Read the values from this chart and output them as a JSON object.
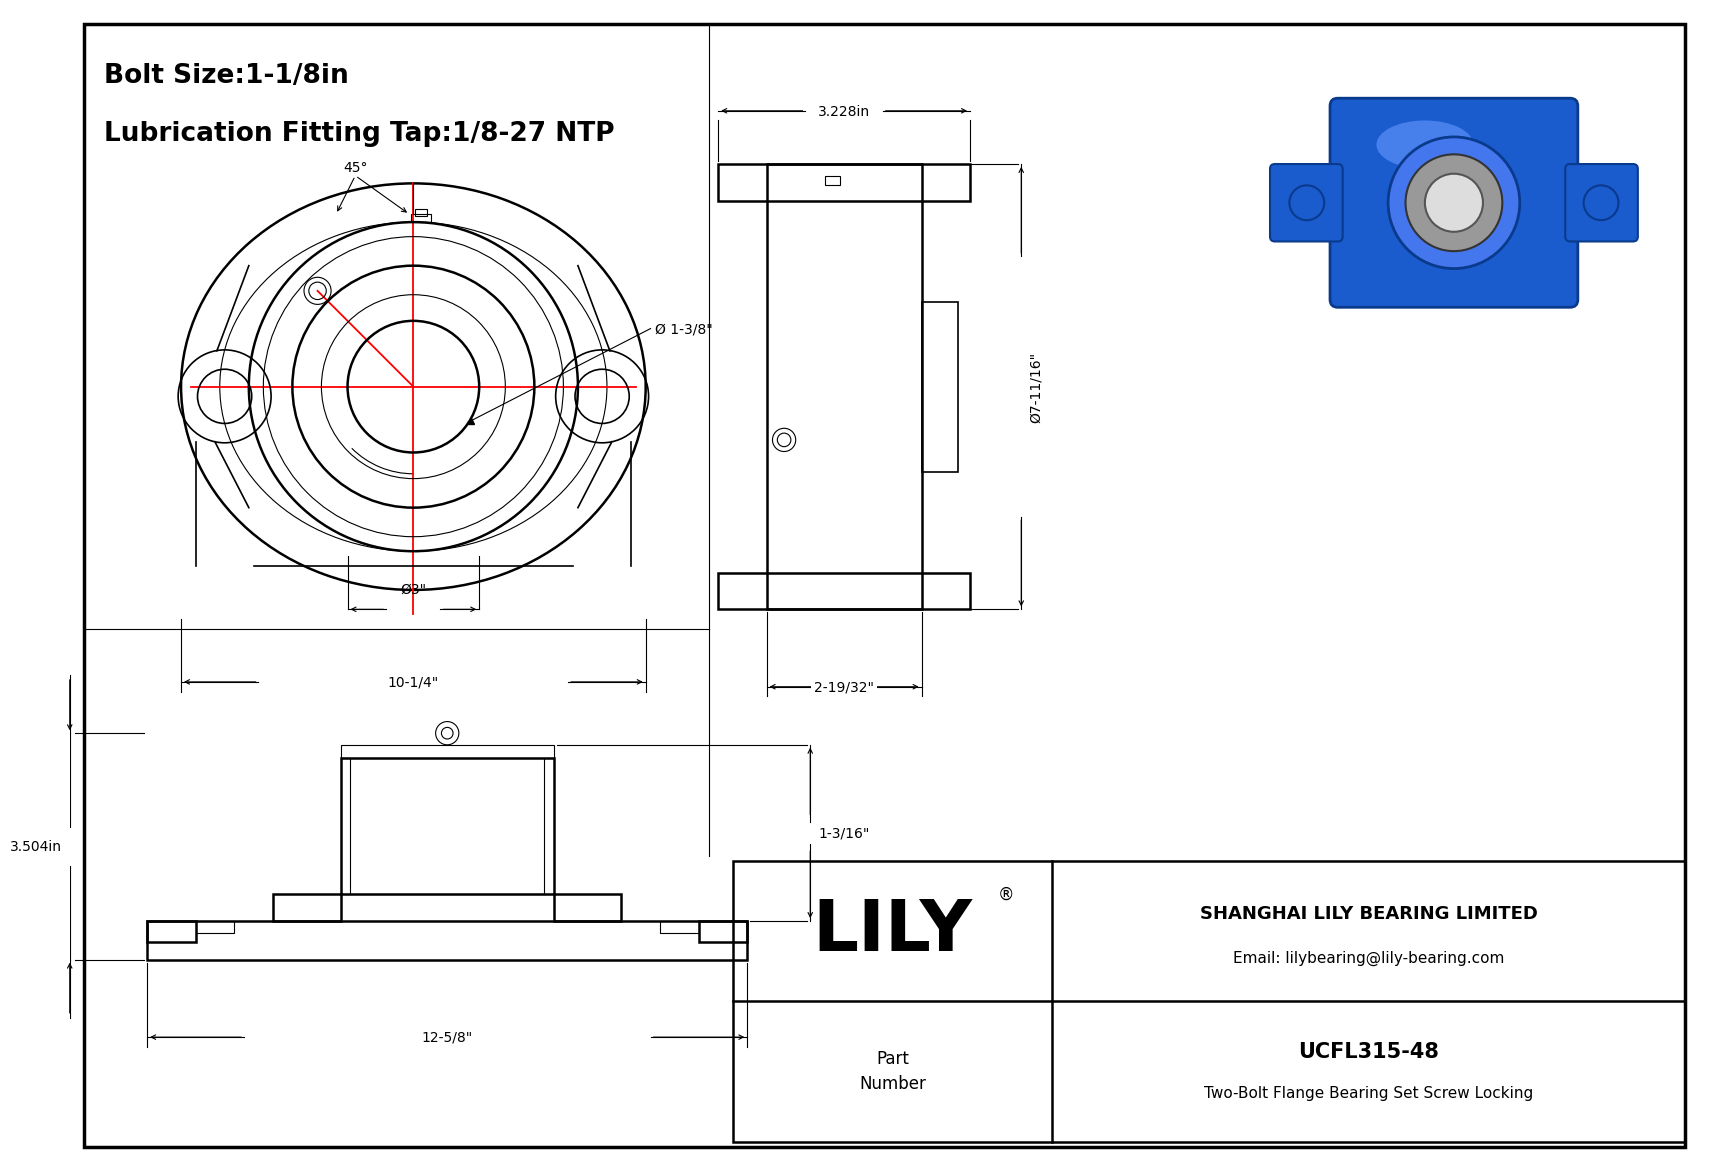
{
  "bg_color": "#ffffff",
  "line_color": "#000000",
  "red_color": "#ff0000",
  "gray_color": "#888888",
  "title_line1": "Bolt Size:1-1/8in",
  "title_line2": "Lubrication Fitting Tap:1/8-27 NTP",
  "dim_angle": "45°",
  "dim_bore": "Ø 1-3/8\"",
  "dim_outer": "Ø3\"",
  "dim_width": "10-1/4\"",
  "dim_side_width": "3.228in",
  "dim_side_height": "Ø7-11/16\"",
  "dim_side_depth": "2-19/32\"",
  "dim_front_height": "3.504in",
  "dim_front_width": "12-5/8\"",
  "dim_front_right": "1-3/16\"",
  "part_number": "UCFL315-48",
  "part_desc": "Two-Bolt Flange Bearing Set Screw Locking",
  "company": "SHANGHAI LILY BEARING LIMITED",
  "email": "Email: lilybearing@lily-bearing.com",
  "lily_text": "LILY",
  "part_label": "Part\nNumber"
}
